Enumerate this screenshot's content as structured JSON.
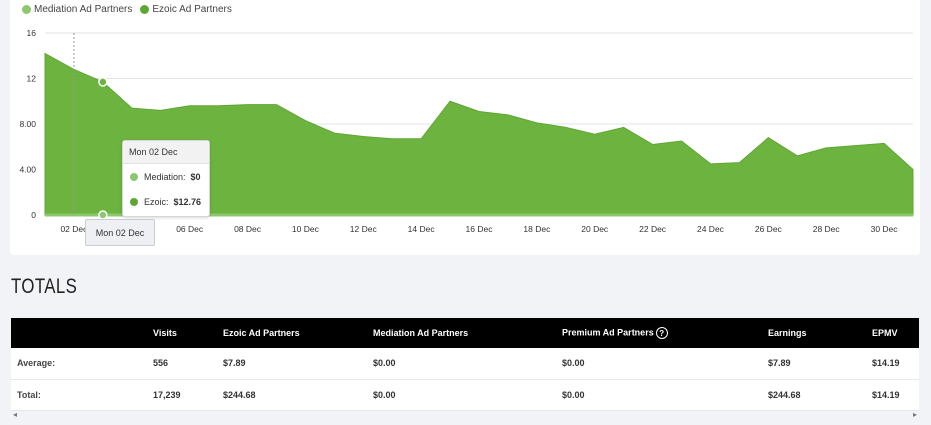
{
  "legend": {
    "mediation": "Mediation Ad Partners",
    "ezoic": "Ezoic Ad Partners"
  },
  "colors": {
    "mediation": "#8cc86e",
    "ezoic": "#5fa733",
    "area_fill": "#6db33f"
  },
  "chart_data": {
    "type": "area",
    "x": [
      "01 Dec",
      "02 Dec",
      "03 Dec",
      "04 Dec",
      "05 Dec",
      "06 Dec",
      "07 Dec",
      "08 Dec",
      "09 Dec",
      "10 Dec",
      "11 Dec",
      "12 Dec",
      "13 Dec",
      "14 Dec",
      "15 Dec",
      "16 Dec",
      "17 Dec",
      "18 Dec",
      "19 Dec",
      "20 Dec",
      "21 Dec",
      "22 Dec",
      "23 Dec",
      "24 Dec",
      "25 Dec",
      "26 Dec",
      "27 Dec",
      "28 Dec",
      "29 Dec",
      "30 Dec",
      "31 Dec"
    ],
    "series": [
      {
        "name": "Ezoic Ad Partners",
        "values": [
          14.2,
          12.8,
          11.7,
          9.4,
          9.2,
          9.6,
          9.6,
          9.7,
          9.7,
          8.3,
          7.2,
          6.9,
          6.7,
          6.7,
          10.0,
          9.1,
          8.8,
          8.1,
          7.7,
          7.1,
          7.7,
          6.2,
          6.5,
          4.5,
          4.6,
          6.8,
          5.2,
          5.9,
          6.1,
          6.3,
          4.0
        ]
      },
      {
        "name": "Mediation Ad Partners",
        "values": [
          0,
          0,
          0,
          0,
          0,
          0,
          0,
          0,
          0,
          0,
          0,
          0,
          0,
          0,
          0,
          0,
          0,
          0,
          0,
          0,
          0,
          0,
          0,
          0,
          0,
          0,
          0,
          0,
          0,
          0,
          0
        ]
      }
    ],
    "tick_labels_x": [
      "02 Dec",
      "04 Dec",
      "06 Dec",
      "08 Dec",
      "10 Dec",
      "12 Dec",
      "14 Dec",
      "16 Dec",
      "18 Dec",
      "20 Dec",
      "22 Dec",
      "24 Dec",
      "26 Dec",
      "28 Dec",
      "30 Dec"
    ],
    "tick_labels_y": [
      "0",
      "4.00",
      "8.00",
      "12",
      "16"
    ],
    "tick_values_y": [
      0,
      4,
      8,
      12,
      16
    ],
    "ylim": [
      0,
      16
    ],
    "grid": true,
    "hover_index": 2
  },
  "tooltip": {
    "date": "Mon 02 Dec",
    "mediation_label": "Mediation:",
    "mediation_value": "$0",
    "ezoic_label": "Ezoic:",
    "ezoic_value": "$12.76"
  },
  "hover_x_label": "Mon 02 Dec",
  "totals": {
    "title": "TOTALS",
    "columns": [
      "",
      "Visits",
      "Ezoic Ad Partners",
      "Mediation Ad Partners",
      "Premium Ad Partners",
      "Earnings",
      "EPMV"
    ],
    "rows": [
      [
        "Average:",
        "556",
        "$7.89",
        "$0.00",
        "$0.00",
        "$7.89",
        "$14.19"
      ],
      [
        "Total:",
        "17,239",
        "$244.68",
        "$0.00",
        "$0.00",
        "$244.68",
        "$14.19"
      ]
    ],
    "help_symbol": "?"
  },
  "scroll": {
    "left": "◂",
    "right": "▸"
  }
}
